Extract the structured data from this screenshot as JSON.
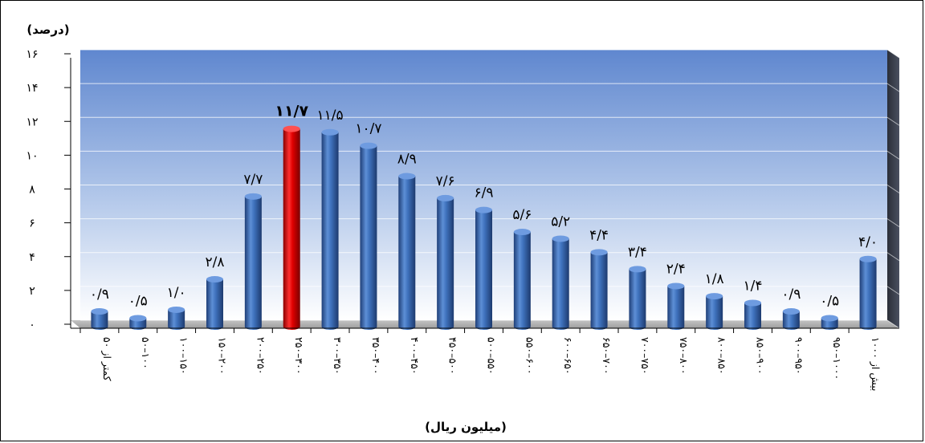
{
  "chart_data": {
    "type": "bar",
    "ylabel": "(درصد)",
    "xlabel": "(میلیون ریال)",
    "ylim": [
      0,
      16
    ],
    "yticks": [
      "۰",
      "۲",
      "۴",
      "۶",
      "۸",
      "۱۰",
      "۱۲",
      "۱۴",
      "۱۶"
    ],
    "grid": true,
    "highlight_color": "#e00000",
    "bar_color": "#3a6db5",
    "categories": [
      "کمتر از ۵۰",
      "۵۰–۱۰۰",
      "۱۰۰–۱۵۰",
      "۱۵۰–۲۰۰",
      "۲۰۰–۲۵۰",
      "۲۵۰–۳۰۰",
      "۳۰۰–۳۵۰",
      "۳۵۰–۴۰۰",
      "۴۰۰–۴۵۰",
      "۴۵۰–۵۰۰",
      "۵۰۰–۵۵۰",
      "۵۵۰–۶۰۰",
      "۶۰۰–۶۵۰",
      "۶۵۰–۷۰۰",
      "۷۰۰–۷۵۰",
      "۷۵۰–۸۰۰",
      "۸۰۰–۸۵۰",
      "۸۵۰–۹۰۰",
      "۹۰۰–۹۵۰",
      "۹۵۰–۱۰۰۰",
      "بیش از ۱۰۰۰"
    ],
    "values": [
      0.9,
      0.5,
      1.0,
      2.8,
      7.7,
      11.7,
      11.5,
      10.7,
      8.9,
      7.6,
      6.9,
      5.6,
      5.2,
      4.4,
      3.4,
      2.4,
      1.8,
      1.4,
      0.9,
      0.5,
      4.0
    ],
    "labels": [
      "۰/۹",
      "۰/۵",
      "۱/۰",
      "۲/۸",
      "۷/۷",
      "۱۱/۷",
      "۱۱/۵",
      "۱۰/۷",
      "۸/۹",
      "۷/۶",
      "۶/۹",
      "۵/۶",
      "۵/۲",
      "۴/۴",
      "۳/۴",
      "۲/۴",
      "۱/۸",
      "۱/۴",
      "۰/۹",
      "۰/۵",
      "۴/۰"
    ],
    "highlight_index": 5
  }
}
